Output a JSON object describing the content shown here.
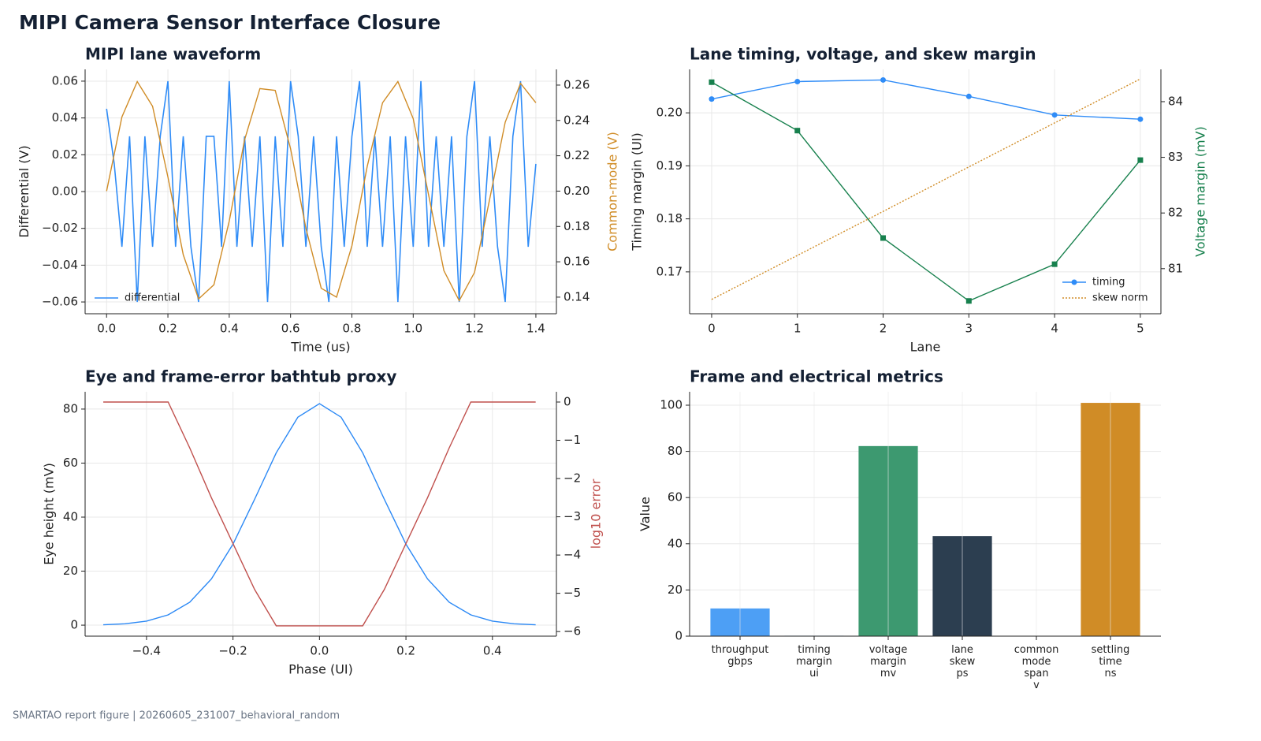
{
  "title": "MIPI Camera Sensor Interface Closure",
  "footer": "SMARTAO report figure | 20260605_231007_behavioral_random",
  "chart_data": [
    {
      "type": "line",
      "title": "MIPI lane waveform",
      "xlabel": "Time (us)",
      "ylabel": "Differential (V)",
      "y2label": "Common-mode (V)",
      "xlim": [
        -0.07,
        1.467
      ],
      "ylim": [
        -0.0664,
        0.0664
      ],
      "y2lim": [
        0.1306,
        0.2689
      ],
      "xticks": [
        {
          "value": 0,
          "label": "0.0"
        },
        0.2,
        0.4,
        0.6,
        0.8,
        {
          "value": 1,
          "label": "1.0"
        },
        1.2,
        1.4
      ],
      "yticks": [
        {
          "value": -0.06,
          "label": "−0.06"
        },
        {
          "value": -0.04,
          "label": "−0.04"
        },
        {
          "value": -0.02,
          "label": "−0.02"
        },
        {
          "value": 0,
          "label": "0.00"
        },
        0.02,
        0.04,
        0.06
      ],
      "y2ticks": [
        0.14,
        0.16,
        0.18,
        {
          "value": 0.2,
          "label": "0.20"
        },
        0.22,
        0.24,
        0.26
      ],
      "grid": true,
      "legend": "lower left",
      "series": [
        {
          "name": "differential",
          "color": "#2f8cf7",
          "x": [
            0,
            0.025,
            0.05,
            0.075,
            0.1,
            0.125,
            0.15,
            0.175,
            0.2,
            0.225,
            0.25,
            0.275,
            0.3,
            0.325,
            0.35,
            0.375,
            0.4,
            0.425,
            0.45,
            0.475,
            0.5,
            0.525,
            0.55,
            0.575,
            0.6,
            0.625,
            0.65,
            0.675,
            0.7,
            0.725,
            0.75,
            0.775,
            0.8,
            0.825,
            0.85,
            0.875,
            0.9,
            0.925,
            0.95,
            0.975,
            1,
            1.025,
            1.05,
            1.075,
            1.1,
            1.125,
            1.15,
            1.175,
            1.2,
            1.225,
            1.25,
            1.275,
            1.3,
            1.325,
            1.35,
            1.375,
            1.4
          ],
          "values": [
            0.045,
            0.015,
            -0.03,
            0.03,
            -0.06,
            0.03,
            -0.03,
            0.03,
            0.06,
            -0.03,
            0.03,
            -0.03,
            -0.06,
            0.03,
            0.03,
            -0.03,
            0.06,
            -0.03,
            0.03,
            -0.03,
            0.03,
            -0.06,
            0.03,
            -0.03,
            0.06,
            0.03,
            -0.03,
            0.03,
            -0.03,
            -0.06,
            0.03,
            -0.03,
            0.03,
            0.06,
            -0.03,
            0.03,
            -0.03,
            0.03,
            -0.06,
            0.03,
            -0.03,
            0.06,
            -0.03,
            0.03,
            -0.03,
            0.03,
            -0.06,
            0.03,
            0.06,
            -0.03,
            0.03,
            -0.03,
            -0.06,
            0.03,
            0.06,
            -0.03,
            0.015
          ]
        },
        {
          "color": "#d08c26",
          "axis": "y2",
          "x": [
            0,
            0.05,
            0.1,
            0.15,
            0.2,
            0.25,
            0.3,
            0.35,
            0.4,
            0.45,
            0.5,
            0.55,
            0.6,
            0.65,
            0.7,
            0.75,
            0.8,
            0.85,
            0.9,
            0.95,
            1,
            1.05,
            1.1,
            1.15,
            1.2,
            1.25,
            1.3,
            1.35,
            1.4
          ],
          "values": [
            0.2,
            0.242,
            0.262,
            0.248,
            0.208,
            0.164,
            0.139,
            0.147,
            0.183,
            0.229,
            0.258,
            0.257,
            0.224,
            0.179,
            0.145,
            0.14,
            0.169,
            0.214,
            0.25,
            0.262,
            0.241,
            0.198,
            0.155,
            0.138,
            0.154,
            0.196,
            0.239,
            0.261,
            0.25
          ]
        }
      ]
    },
    {
      "type": "line",
      "title": "Lane timing, voltage, and skew margin",
      "xlabel": "Lane",
      "ylabel": "Timing margin (UI)",
      "y2label": "Voltage margin (mV)",
      "xlim": [
        -0.257,
        5.24
      ],
      "ylim": [
        0.1621,
        0.2082
      ],
      "y2lim": [
        80.19,
        84.58
      ],
      "xticks": [
        0,
        1,
        2,
        3,
        4,
        5
      ],
      "yticks": [
        0.17,
        0.18,
        0.19,
        {
          "value": 0.2,
          "label": "0.20"
        }
      ],
      "y2ticks": [
        81,
        82,
        83,
        84
      ],
      "grid": true,
      "legend": "lower right",
      "x": [
        0,
        1,
        2,
        3,
        4,
        5
      ],
      "series": [
        {
          "name": "timing",
          "color": "#2f8cf7",
          "marker": "circle",
          "values": [
            0.2026,
            0.2059,
            0.2062,
            0.2031,
            0.1996,
            0.1988
          ]
        },
        {
          "name": "skew norm",
          "color": "#d08c26",
          "dash": "dotted",
          "values": [
            0.1648,
            0.1731,
            0.1814,
            0.1898,
            0.1981,
            0.2064
          ]
        },
        {
          "color": "#17804d",
          "marker": "square",
          "axis": "y2",
          "values": [
            84.35,
            83.48,
            81.55,
            80.42,
            81.08,
            82.95
          ]
        }
      ]
    },
    {
      "type": "line",
      "title": "Eye and frame-error bathtub proxy",
      "xlabel": "Phase (UI)",
      "ylabel": "Eye height (mV)",
      "y2label": "log10 error",
      "xlim": [
        -0.542,
        0.548
      ],
      "ylim": [
        -4.07,
        86.4
      ],
      "y2lim": [
        -6.12,
        0.268
      ],
      "xticks": [
        {
          "value": -0.4,
          "label": "−0.4"
        },
        {
          "value": -0.2,
          "label": "−0.2"
        },
        {
          "value": 0,
          "label": "0.0"
        },
        0.2,
        0.4
      ],
      "yticks": [
        0,
        20,
        40,
        60,
        80
      ],
      "y2ticks": [
        {
          "value": -6,
          "label": "−6"
        },
        {
          "value": -5,
          "label": "−5"
        },
        {
          "value": -4,
          "label": "−4"
        },
        {
          "value": -3,
          "label": "−3"
        },
        {
          "value": -2,
          "label": "−2"
        },
        {
          "value": -1,
          "label": "−1"
        },
        0
      ],
      "grid": true,
      "x": [
        -0.5,
        -0.45,
        -0.4,
        -0.35,
        -0.3,
        -0.25,
        -0.2,
        -0.15,
        -0.1,
        -0.05,
        0,
        0.05,
        0.1,
        0.15,
        0.2,
        0.25,
        0.3,
        0.35,
        0.4,
        0.45,
        0.5
      ],
      "series": [
        {
          "color": "#2a88f5",
          "values": [
            0.15,
            0.5,
            1.5,
            3.8,
            8.5,
            17.1,
            30,
            46.6,
            63.8,
            77,
            82,
            77,
            63.8,
            46.6,
            30,
            17.1,
            8.5,
            3.8,
            1.5,
            0.5,
            0.15
          ]
        },
        {
          "color": "#c0504d",
          "axis": "y2",
          "values": [
            0,
            0,
            0,
            0,
            -1.2,
            -2.5,
            -3.7,
            -4.9,
            -5.85,
            -5.85,
            -5.85,
            -5.85,
            -5.85,
            -4.9,
            -3.7,
            -2.5,
            -1.2,
            0,
            0,
            0,
            0
          ]
        }
      ]
    },
    {
      "type": "bar",
      "title": "Frame and electrical metrics",
      "ylabel": "Value",
      "categories": [
        "throughput\ngbps",
        "timing\nmargin\nui",
        "voltage\nmargin\nmv",
        "lane\nskew\nps",
        "common\nmode\nspan\nv",
        "settling\ntime\nns"
      ],
      "values": [
        12,
        0.2,
        82.3,
        43.3,
        0.13,
        101
      ],
      "colors": [
        "#4d9ff5",
        "#7fb3e6",
        "#3d9970",
        "#2c3e50",
        "#9aa5b1",
        "#d08c26"
      ],
      "ylim": [
        0,
        105.8
      ],
      "yticks": [
        0,
        20,
        40,
        60,
        80,
        100
      ],
      "grid": true
    }
  ]
}
